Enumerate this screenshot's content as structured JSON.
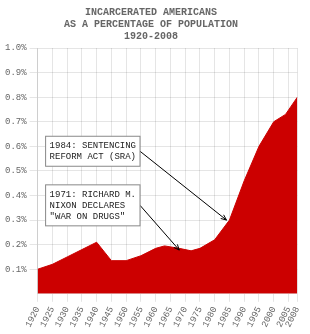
{
  "chart_data": {
    "type": "area",
    "title": [
      "INCARCERATED AMERICANS",
      "AS A PERCENTAGE OF POPULATION",
      "1920-2008"
    ],
    "x": [
      1920,
      1925,
      1930,
      1935,
      1940,
      1945,
      1950,
      1955,
      1960,
      1963,
      1968,
      1972,
      1975,
      1980,
      1985,
      1990,
      1995,
      2000,
      2004,
      2008
    ],
    "values": [
      0.1,
      0.12,
      0.15,
      0.18,
      0.21,
      0.135,
      0.135,
      0.155,
      0.185,
      0.195,
      0.185,
      0.175,
      0.185,
      0.22,
      0.3,
      0.46,
      0.6,
      0.7,
      0.73,
      0.8
    ],
    "color": "#cc0000",
    "xlim": [
      1920,
      2008
    ],
    "ylim": [
      0.0,
      1.0
    ],
    "xticks": [
      1920,
      1925,
      1930,
      1935,
      1940,
      1945,
      1950,
      1955,
      1960,
      1965,
      1970,
      1975,
      1980,
      1985,
      1990,
      1995,
      2000,
      2005,
      2008
    ],
    "yticks": [
      {
        "value": 0.1,
        "label": "0.1%"
      },
      {
        "value": 0.2,
        "label": "0.2%"
      },
      {
        "value": 0.3,
        "label": "0.3%"
      },
      {
        "value": 0.4,
        "label": "0.4%"
      },
      {
        "value": 0.5,
        "label": "0.5%"
      },
      {
        "value": 0.6,
        "label": "0.6%"
      },
      {
        "value": 0.7,
        "label": "0.7%"
      },
      {
        "value": 0.8,
        "label": "0.8%"
      },
      {
        "value": 0.9,
        "label": "0.9%"
      },
      {
        "value": 1.0,
        "label": "1.0%"
      }
    ],
    "grid": true,
    "annotations": [
      {
        "text": [
          "1984: SENTENCING",
          "REFORM ACT (SRA)"
        ],
        "x": 1984,
        "y": 0.3
      },
      {
        "text": [
          "1971: RICHARD M.",
          "NIXON DECLARES",
          "\"WAR ON DRUGS\""
        ],
        "x": 1968,
        "y": 0.178
      }
    ]
  }
}
